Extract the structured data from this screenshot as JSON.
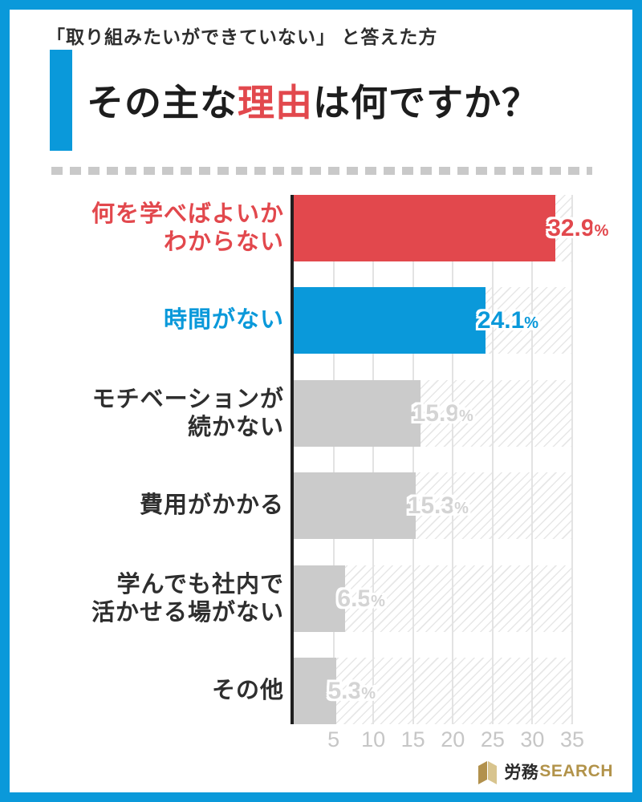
{
  "frame": {
    "accent_color": "#0a99da"
  },
  "header": {
    "subtitle": "「取り組みたいができていない」 と答えた方",
    "title_prefix": "その主な",
    "title_highlight": "理由",
    "title_suffix": "は何ですか？",
    "highlight_color": "#e2484d"
  },
  "chart_data": {
    "type": "bar",
    "orientation": "horizontal",
    "title": "その主な理由は何ですか？",
    "unit": "%",
    "categories": [
      [
        "何を学べばよいか",
        "わからない"
      ],
      [
        "時間がない"
      ],
      [
        "モチベーションが",
        "続かない"
      ],
      [
        "費用がかかる"
      ],
      [
        "学んでも社内で",
        "活かせる場がない"
      ],
      [
        "その他"
      ]
    ],
    "values": [
      32.9,
      24.1,
      15.9,
      15.3,
      6.5,
      5.3
    ],
    "value_labels": [
      "32.9",
      "24.1",
      "15.9",
      "15.3",
      "6.5",
      "5.3"
    ],
    "percent_sign": "%",
    "bar_colors": [
      "#e2484d",
      "#0a99da",
      "#cbcbcb",
      "#cbcbcb",
      "#cbcbcb",
      "#cbcbcb"
    ],
    "category_colors": [
      "#e2484d",
      "#0a99da",
      "#2e2e2e",
      "#2e2e2e",
      "#2e2e2e",
      "#2e2e2e"
    ],
    "value_colors": [
      "#e2484d",
      "#0a99da",
      "#d4d4d4",
      "#d4d4d4",
      "#d4d4d4",
      "#d4d4d4"
    ],
    "x_ticks": [
      "5",
      "10",
      "15",
      "20",
      "25",
      "30",
      "35"
    ],
    "xlim": [
      0,
      35
    ],
    "grid": true,
    "grid_color": "#e3e3e3",
    "hatch_background": true
  },
  "footer": {
    "logo_text_dark": "労務",
    "logo_text_gold": "SEARCH",
    "logo_gold_color": "#b2934a",
    "logo_gold_light_color": "#d8c48e"
  }
}
